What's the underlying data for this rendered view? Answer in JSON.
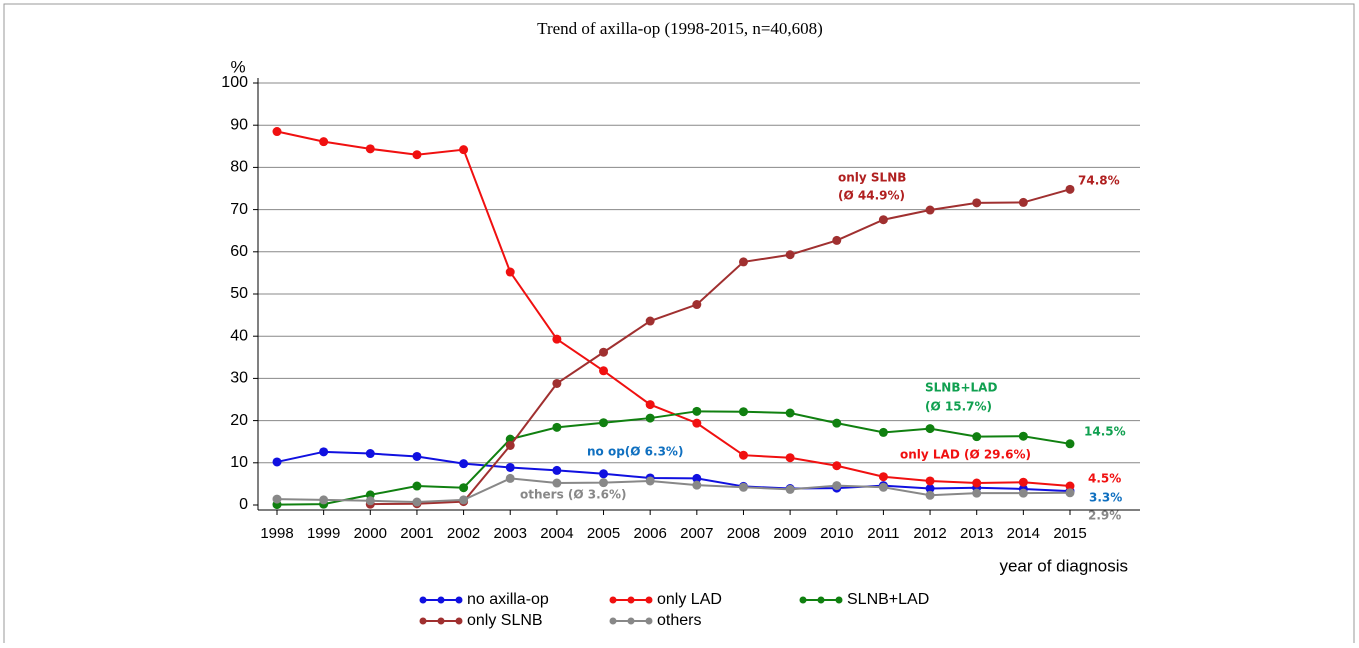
{
  "chart_data": {
    "type": "line",
    "title": "Trend of axilla-op (1998-2015, n=40,608)",
    "y_label": "%",
    "x_label": "year of diagnosis",
    "categories": [
      "1998",
      "1999",
      "2000",
      "2001",
      "2002",
      "2003",
      "2004",
      "2005",
      "2006",
      "2007",
      "2008",
      "2009",
      "2010",
      "2011",
      "2012",
      "2013",
      "2014",
      "2015"
    ],
    "ylim": [
      0,
      100
    ],
    "yticks": [
      0,
      10,
      20,
      30,
      40,
      50,
      60,
      70,
      80,
      90,
      100
    ],
    "grid": true,
    "series": [
      {
        "name": "no axilla-op",
        "color": "#1010e0",
        "values": [
          10.2,
          12.6,
          12.2,
          11.5,
          9.8,
          8.9,
          8.2,
          7.4,
          6.4,
          6.3,
          4.4,
          3.9,
          4.0,
          4.6,
          3.9,
          4.1,
          3.8,
          3.3
        ]
      },
      {
        "name": "only LAD",
        "color": "#f01010",
        "values": [
          88.5,
          86.1,
          84.4,
          83.0,
          84.2,
          55.2,
          39.3,
          31.8,
          23.8,
          19.4,
          11.8,
          11.2,
          9.3,
          6.7,
          5.7,
          5.2,
          5.4,
          4.5
        ]
      },
      {
        "name": "SLNB+LAD",
        "color": "#108010",
        "values": [
          0.1,
          0.2,
          2.4,
          4.5,
          4.1,
          15.6,
          18.4,
          19.5,
          20.6,
          22.2,
          22.1,
          21.8,
          19.4,
          17.2,
          18.1,
          16.2,
          16.3,
          14.5
        ]
      },
      {
        "name": "only SLNB",
        "color": "#a03030",
        "values": [
          null,
          null,
          0.2,
          0.3,
          0.8,
          14.1,
          28.8,
          36.2,
          43.6,
          47.5,
          57.6,
          59.3,
          62.7,
          67.6,
          69.9,
          71.6,
          71.7,
          74.8
        ]
      },
      {
        "name": "others",
        "color": "#888888",
        "values": [
          1.4,
          1.2,
          1.0,
          0.7,
          1.2,
          6.3,
          5.2,
          5.3,
          5.7,
          4.7,
          4.2,
          3.7,
          4.6,
          4.2,
          2.3,
          2.8,
          2.8,
          2.9
        ]
      }
    ],
    "annotations": [
      {
        "text": "only SLNB",
        "color": "#b02020"
      },
      {
        "text": "(Ø 44.9%)",
        "color": "#b02020"
      },
      {
        "text": "74.8%",
        "color": "#b02020"
      },
      {
        "text": "SLNB+LAD",
        "color": "#10a050"
      },
      {
        "text": "(Ø 15.7%)",
        "color": "#10a050"
      },
      {
        "text": "14.5%",
        "color": "#10a050"
      },
      {
        "text": "only LAD (Ø 29.6%)",
        "color": "#f01010"
      },
      {
        "text": "4.5%",
        "color": "#f01010"
      },
      {
        "text": "no op(Ø 6.3%)",
        "color": "#1070c0"
      },
      {
        "text": "3.3%",
        "color": "#1070c0"
      },
      {
        "text": "others (Ø 3.6%)",
        "color": "#888888"
      },
      {
        "text": "2.9%",
        "color": "#888888"
      }
    ]
  }
}
